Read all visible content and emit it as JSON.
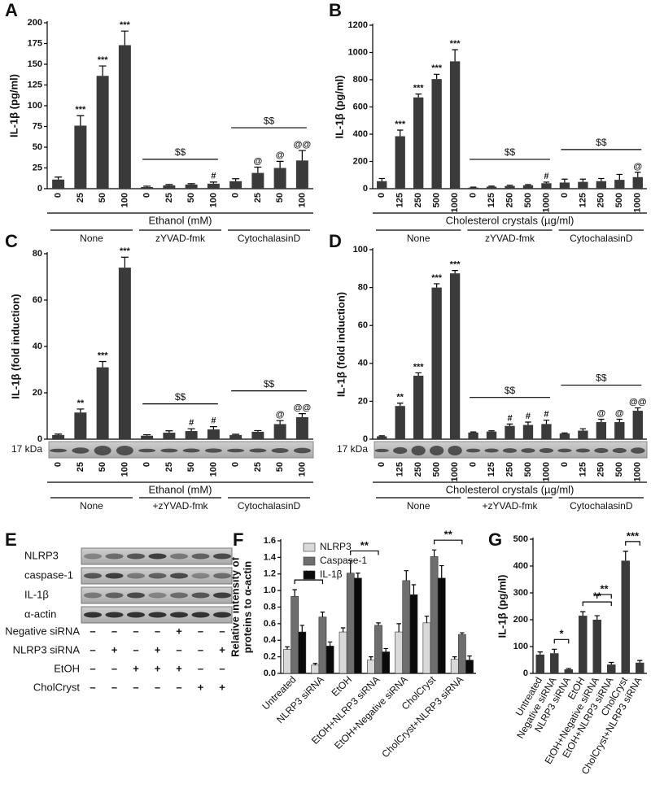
{
  "chart_data": [
    {
      "type": "bar",
      "label": "A",
      "ylabel": "IL-1β (pg/ml)",
      "xlabel": "Ethanol (mM)",
      "color": "#3a3a3a",
      "categories": [
        "0",
        "25",
        "50",
        "100"
      ],
      "ylim": [
        0,
        200
      ],
      "yticks": [
        0,
        25,
        50,
        75,
        100,
        125,
        150,
        175,
        200
      ],
      "series": [
        {
          "name": "None",
          "values": [
            11,
            76,
            136,
            173
          ],
          "errors": [
            3,
            12,
            12,
            17
          ],
          "marks": [
            null,
            "***",
            "***",
            "***"
          ]
        },
        {
          "name": "zYVAD-fmk",
          "values": [
            2,
            4,
            5,
            6
          ],
          "errors": [
            1,
            1,
            1,
            2
          ],
          "marks": [
            null,
            null,
            null,
            "#"
          ],
          "bracket": "$$"
        },
        {
          "name": "CytochalasinD",
          "values": [
            9,
            19,
            25,
            34
          ],
          "errors": [
            3,
            7,
            8,
            12
          ],
          "marks": [
            null,
            "@",
            "@",
            "@@"
          ],
          "bracket": "$$"
        }
      ]
    },
    {
      "type": "bar",
      "label": "B",
      "ylabel": "IL-1β (pg/ml)",
      "xlabel": "Cholesterol crystals (µg/ml)",
      "color": "#3a3a3a",
      "categories": [
        "0",
        "125",
        "250",
        "500",
        "1000"
      ],
      "ylim": [
        0,
        1200
      ],
      "yticks": [
        0,
        200,
        400,
        600,
        800,
        1000,
        1200
      ],
      "series": [
        {
          "name": "None",
          "values": [
            55,
            385,
            670,
            805,
            935
          ],
          "errors": [
            20,
            45,
            25,
            35,
            85
          ],
          "marks": [
            null,
            "***",
            "***",
            "***",
            "***"
          ]
        },
        {
          "name": "zYVAD-fmk",
          "values": [
            8,
            15,
            20,
            25,
            40
          ],
          "errors": [
            3,
            4,
            5,
            5,
            8
          ],
          "marks": [
            null,
            null,
            null,
            null,
            "#"
          ],
          "bracket": "$$"
        },
        {
          "name": "CytochalasinD",
          "values": [
            45,
            50,
            55,
            65,
            85
          ],
          "errors": [
            25,
            20,
            20,
            40,
            35
          ],
          "marks": [
            null,
            null,
            null,
            null,
            "@"
          ],
          "bracket": "$$"
        }
      ]
    },
    {
      "type": "bar",
      "label": "C",
      "ylabel": "IL-1β (fold induction)",
      "xlabel": "Ethanol (mM)",
      "blot_label": "17 kDa",
      "color": "#3a3a3a",
      "categories": [
        "0",
        "25",
        "50",
        "100"
      ],
      "ylim": [
        0,
        80
      ],
      "yticks": [
        0,
        20,
        40,
        60,
        80
      ],
      "series": [
        {
          "name": "None",
          "values": [
            1.8,
            11.5,
            31,
            74
          ],
          "errors": [
            0.4,
            1.5,
            2.5,
            4.5
          ],
          "marks": [
            null,
            "**",
            "***",
            "***"
          ]
        },
        {
          "name": "+zYVAD-fmk",
          "values": [
            1.5,
            2.8,
            3.5,
            4.2
          ],
          "errors": [
            0.4,
            0.8,
            1,
            1.2
          ],
          "marks": [
            null,
            null,
            "#",
            "#"
          ],
          "bracket": "$$"
        },
        {
          "name": "CytochalasinD",
          "values": [
            1.8,
            3.2,
            6.5,
            9.5
          ],
          "errors": [
            0.3,
            0.5,
            1.5,
            1.5
          ],
          "marks": [
            null,
            null,
            "@",
            "@@"
          ],
          "bracket": "$$"
        }
      ]
    },
    {
      "type": "bar",
      "label": "D",
      "ylabel": "IL-1β (fold induction)",
      "xlabel": "Cholesterol crystals (µg/ml)",
      "blot_label": "17 kDa",
      "color": "#3a3a3a",
      "categories": [
        "0",
        "125",
        "250",
        "500",
        "1000"
      ],
      "ylim": [
        0,
        100
      ],
      "yticks": [
        0,
        20,
        40,
        60,
        80,
        100
      ],
      "series": [
        {
          "name": "None",
          "values": [
            1.5,
            17.5,
            33.5,
            80,
            87.5
          ],
          "errors": [
            0.3,
            1.5,
            1.5,
            2,
            1.5
          ],
          "marks": [
            null,
            "**",
            "***",
            "***",
            "***"
          ]
        },
        {
          "name": "+zYVAD-fmk",
          "values": [
            3.5,
            4,
            7,
            7.5,
            8
          ],
          "errors": [
            0.3,
            0.4,
            1,
            1.5,
            2
          ],
          "marks": [
            null,
            null,
            "#",
            "#",
            "#"
          ],
          "bracket": "$$"
        },
        {
          "name": "CytochalasinD",
          "values": [
            3,
            4.5,
            9,
            9,
            15
          ],
          "errors": [
            0.3,
            1,
            1.5,
            1.5,
            1.5
          ],
          "marks": [
            null,
            null,
            "@",
            "@",
            "@@"
          ],
          "bracket": "$$"
        }
      ]
    },
    {
      "type": "bar",
      "label": "F",
      "ylabel": [
        "Relative intensity of",
        "proteins to α-actin"
      ],
      "legend": "top-left",
      "categories": [
        "Untreated",
        "NLRP3 siRNA",
        "EtOH",
        "EtOH+NLRP3 siRNA",
        "EtOH+Negative siRNA",
        "CholCryst",
        "CholCryst+NLRP3 siRNA"
      ],
      "ylim": [
        0,
        1.6
      ],
      "yticks": [
        {
          "value": 0,
          "label": "0.0"
        },
        0.2,
        0.4,
        0.6,
        0.8,
        {
          "value": 1,
          "label": "1.0"
        },
        1.2,
        1.4,
        1.6
      ],
      "series": [
        {
          "name": "NLRP3",
          "color": "#d9d9d9",
          "values": [
            0.29,
            0.1,
            0.5,
            0.16,
            0.5,
            0.61,
            0.17
          ],
          "errors": [
            0.03,
            0.02,
            0.05,
            0.04,
            0.1,
            0.08,
            0.03
          ]
        },
        {
          "name": "Caspase-1",
          "color": "#6e6e6e",
          "values": [
            0.93,
            0.68,
            1.21,
            0.58,
            1.12,
            1.41,
            0.47
          ],
          "errors": [
            0.08,
            0.06,
            0.15,
            0.03,
            0.12,
            0.08,
            0.02
          ]
        },
        {
          "name": "IL-1β",
          "color": "#0a0a0a",
          "values": [
            0.5,
            0.33,
            1.15,
            0.26,
            0.95,
            1.15,
            0.16
          ],
          "errors": [
            0.08,
            0.05,
            0.06,
            0.04,
            0.12,
            0.15,
            0.05
          ]
        }
      ],
      "brackets": [
        {
          "text": "**",
          "from": 0,
          "to": 1
        },
        {
          "text": "**",
          "from": 2,
          "to": 3
        },
        {
          "text": "**",
          "from": 5,
          "to": 6
        }
      ]
    },
    {
      "type": "bar",
      "label": "G",
      "ylabel": "IL-1β (pg/ml)",
      "color": "#3a3a3a",
      "categories": [
        "Untreated",
        "Negative siRNA",
        "NLRP3 siRNA",
        "EtOH",
        "EtOH+Negative siRNA",
        "EtOH+NLRP3 siRNA",
        "CholCryst",
        "CholCryst+NLRP3 siRNA"
      ],
      "values": [
        70,
        75,
        15,
        215,
        200,
        33,
        420,
        40
      ],
      "errors": [
        10,
        15,
        3,
        15,
        15,
        8,
        35,
        8
      ],
      "ylim": [
        0,
        500
      ],
      "yticks": [
        0,
        100,
        200,
        300,
        400,
        500
      ],
      "brackets": [
        {
          "text": "*",
          "from": 1,
          "to": 2
        },
        {
          "text": "**",
          "from": 3,
          "to": 5
        },
        {
          "text": "**",
          "from": 4,
          "to": 5
        },
        {
          "text": "***",
          "from": 6,
          "to": 7
        }
      ]
    }
  ],
  "blot": {
    "label": "E",
    "bands": [
      "NLRP3",
      "caspase-1",
      "IL-1β",
      "α-actin"
    ],
    "conditions": [
      {
        "name": "Negative siRNA",
        "lanes": [
          "–",
          "–",
          "–",
          "–",
          "+",
          "–",
          "–"
        ]
      },
      {
        "name": "NLRP3 siRNA",
        "lanes": [
          "–",
          "+",
          "–",
          "+",
          "–",
          "–",
          "+"
        ]
      },
      {
        "name": "EtOH",
        "lanes": [
          "–",
          "–",
          "+",
          "+",
          "+",
          "–",
          "–"
        ]
      },
      {
        "name": "CholCryst",
        "lanes": [
          "–",
          "–",
          "–",
          "–",
          "–",
          "+",
          "+"
        ]
      }
    ]
  }
}
